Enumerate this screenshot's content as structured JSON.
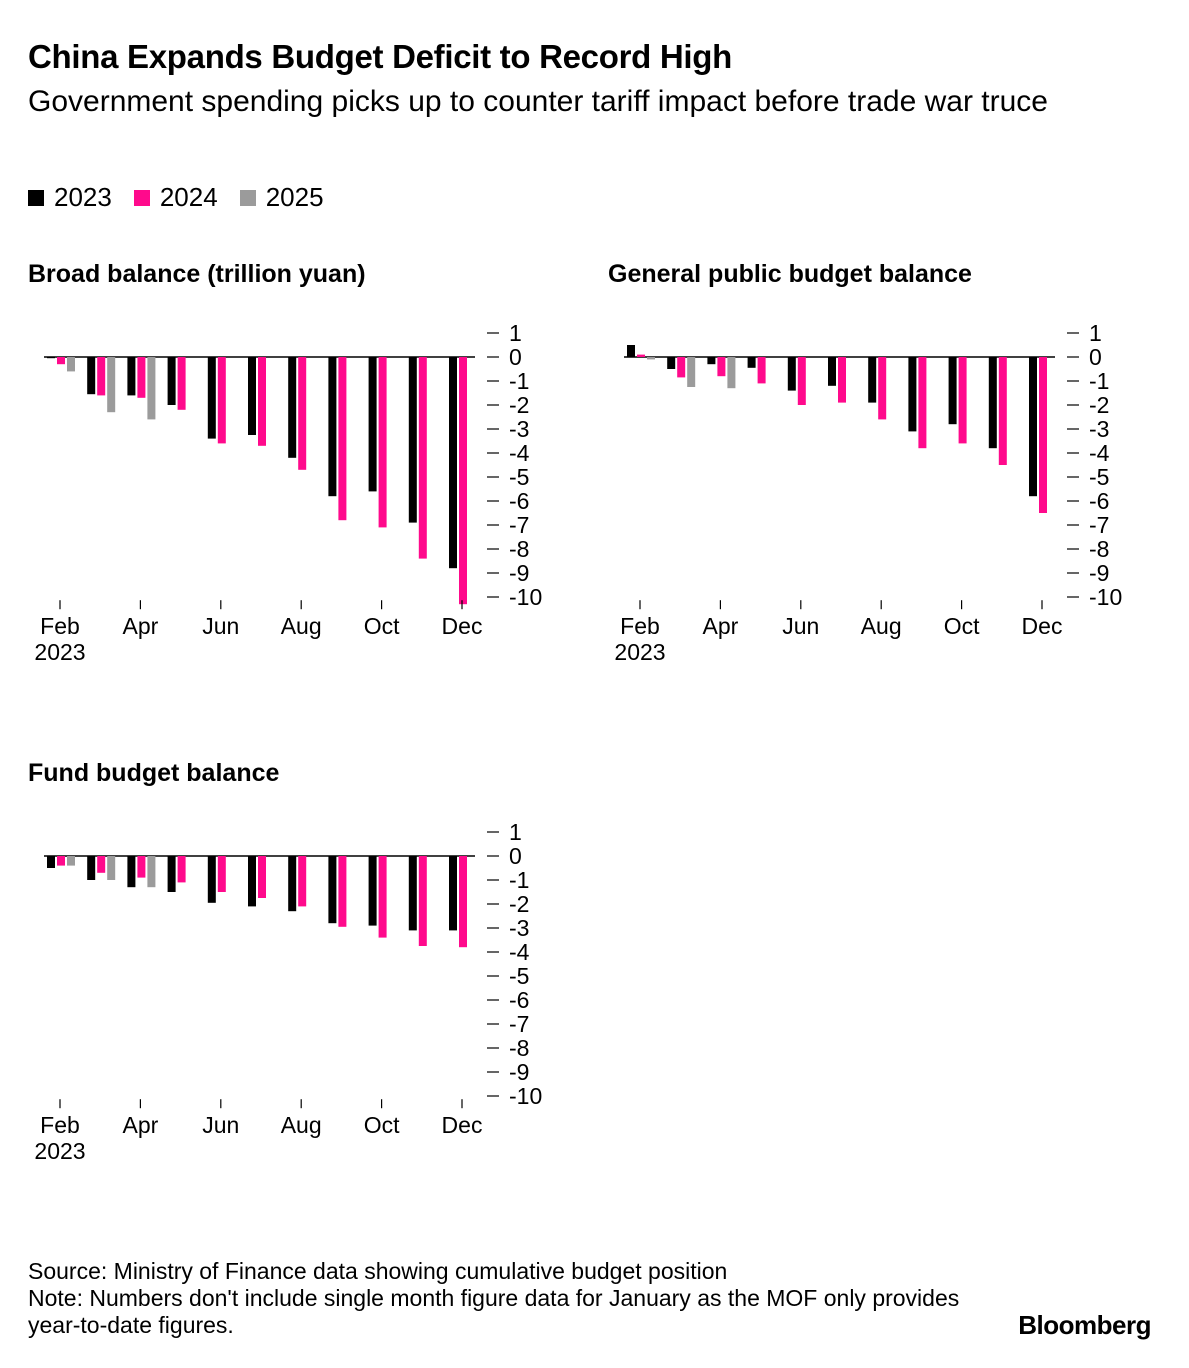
{
  "header": {
    "title": "China Expands Budget Deficit to Record High",
    "subtitle": "Government spending picks up to counter tariff impact before trade war truce"
  },
  "legend": [
    {
      "label": "2023",
      "color": "#000000"
    },
    {
      "label": "2024",
      "color": "#ff0a8c"
    },
    {
      "label": "2025",
      "color": "#9b9b9b"
    }
  ],
  "chart_data": [
    {
      "type": "bar",
      "title": "Broad balance (trillion yuan)",
      "categories": [
        "Feb",
        "Mar",
        "Apr",
        "May",
        "Jun",
        "Jul",
        "Aug",
        "Sep",
        "Oct",
        "Nov",
        "Dec"
      ],
      "tick_labels": [
        "Feb",
        "Apr",
        "Jun",
        "Aug",
        "Oct",
        "Dec"
      ],
      "tick_sublabel": "2023",
      "yticks": [
        "1",
        "0",
        "-1",
        "-2",
        "-3",
        "-4",
        "-5",
        "-6",
        "-7",
        "-8",
        "-9",
        "-10"
      ],
      "ylim": [
        -10.3,
        1
      ],
      "series": [
        {
          "name": "2023",
          "values": [
            -0.05,
            -1.55,
            -1.6,
            -2.0,
            -3.4,
            -3.25,
            -4.2,
            -5.8,
            -5.6,
            -6.9,
            -8.8
          ]
        },
        {
          "name": "2024",
          "values": [
            -0.3,
            -1.6,
            -1.7,
            -2.2,
            -3.6,
            -3.7,
            -4.7,
            -6.8,
            -7.1,
            -8.4,
            -10.3
          ]
        },
        {
          "name": "2025",
          "values": [
            -0.6,
            -2.3,
            -2.6,
            null,
            null,
            null,
            null,
            null,
            null,
            null,
            null
          ]
        }
      ]
    },
    {
      "type": "bar",
      "title": "General public budget balance",
      "categories": [
        "Feb",
        "Mar",
        "Apr",
        "May",
        "Jun",
        "Jul",
        "Aug",
        "Sep",
        "Oct",
        "Nov",
        "Dec"
      ],
      "tick_labels": [
        "Feb",
        "Apr",
        "Jun",
        "Aug",
        "Oct",
        "Dec"
      ],
      "tick_sublabel": "2023",
      "yticks": [
        "1",
        "0",
        "-1",
        "-2",
        "-3",
        "-4",
        "-5",
        "-6",
        "-7",
        "-8",
        "-9",
        "-10"
      ],
      "ylim": [
        -10.3,
        1
      ],
      "series": [
        {
          "name": "2023",
          "values": [
            0.5,
            -0.5,
            -0.3,
            -0.45,
            -1.4,
            -1.2,
            -1.9,
            -3.1,
            -2.8,
            -3.8,
            -5.8
          ]
        },
        {
          "name": "2024",
          "values": [
            0.1,
            -0.85,
            -0.8,
            -1.1,
            -2.0,
            -1.9,
            -2.6,
            -3.8,
            -3.6,
            -4.5,
            -6.5
          ]
        },
        {
          "name": "2025",
          "values": [
            -0.1,
            -1.25,
            -1.3,
            null,
            null,
            null,
            null,
            null,
            null,
            null,
            null
          ]
        }
      ]
    },
    {
      "type": "bar",
      "title": "Fund budget balance",
      "categories": [
        "Feb",
        "Mar",
        "Apr",
        "May",
        "Jun",
        "Jul",
        "Aug",
        "Sep",
        "Oct",
        "Nov",
        "Dec"
      ],
      "tick_labels": [
        "Feb",
        "Apr",
        "Jun",
        "Aug",
        "Oct",
        "Dec"
      ],
      "tick_sublabel": "2023",
      "yticks": [
        "1",
        "0",
        "-1",
        "-2",
        "-3",
        "-4",
        "-5",
        "-6",
        "-7",
        "-8",
        "-9",
        "-10"
      ],
      "ylim": [
        -10.3,
        1
      ],
      "series": [
        {
          "name": "2023",
          "values": [
            -0.5,
            -1.0,
            -1.3,
            -1.5,
            -1.95,
            -2.1,
            -2.3,
            -2.8,
            -2.9,
            -3.1,
            -3.1
          ]
        },
        {
          "name": "2024",
          "values": [
            -0.4,
            -0.7,
            -0.9,
            -1.1,
            -1.5,
            -1.75,
            -2.1,
            -2.95,
            -3.4,
            -3.75,
            -3.8
          ]
        },
        {
          "name": "2025",
          "values": [
            -0.4,
            -1.0,
            -1.3,
            null,
            null,
            null,
            null,
            null,
            null,
            null,
            null
          ]
        }
      ]
    }
  ],
  "footer": {
    "source": "Source: Ministry of Finance data showing cumulative budget position",
    "note": "Note: Numbers don't include single month figure data for January as the MOF only provides year-to-date figures.",
    "brand": "Bloomberg"
  }
}
